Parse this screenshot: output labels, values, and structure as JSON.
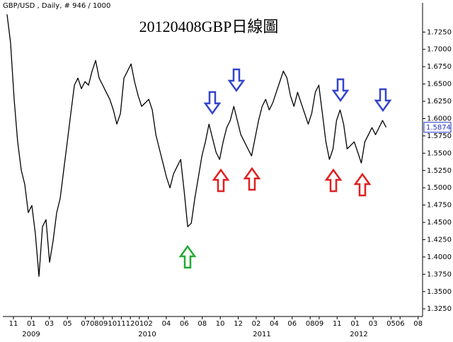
{
  "chart_data": {
    "type": "line",
    "header": "GBP/USD , Daily, # 946 / 1000",
    "title": "20120408GBP日線圖",
    "last_label": "1.5874",
    "last_value": 1.5874,
    "color": "#000000",
    "x": [
      -0.71,
      -0.32,
      0.08,
      0.47,
      0.87,
      1.26,
      1.65,
      2.05,
      2.44,
      2.84,
      3.23,
      3.62,
      4.02,
      4.41,
      4.81,
      5.2,
      5.59,
      5.99,
      6.38,
      6.78,
      7.17,
      7.56,
      7.96,
      8.35,
      8.75,
      9.14,
      9.53,
      9.93,
      10.32,
      10.72,
      11.11,
      11.5,
      11.9,
      12.29,
      12.69,
      13.08,
      13.47,
      13.87,
      14.26,
      14.66,
      15.05,
      15.44,
      15.84,
      16.23,
      16.63,
      17.02,
      17.41,
      17.81,
      18.2,
      18.6,
      18.99,
      19.38,
      19.78,
      20.17,
      20.57,
      20.96,
      21.35,
      21.75,
      22.14,
      22.54,
      22.93,
      23.32,
      23.72,
      24.11,
      24.51,
      24.9,
      25.29,
      25.69,
      26.08,
      26.48,
      26.87,
      27.26,
      27.66,
      28.05,
      28.45,
      28.84,
      29.23,
      29.63,
      30.02,
      30.42,
      30.81,
      31.2,
      31.6,
      31.99,
      32.39,
      32.78,
      33.17,
      33.57,
      33.96,
      34.36,
      34.75,
      35.14,
      35.54,
      35.93,
      36.33,
      36.72,
      37.11,
      37.51,
      37.9,
      38.3,
      38.69,
      39.08,
      39.48,
      39.87,
      40.27,
      40.66,
      41.05,
      41.45
    ],
    "series": [
      {
        "color": "#000000",
        "values": [
          1.7506,
          1.7097,
          1.6278,
          1.5664,
          1.5255,
          1.505,
          1.4641,
          1.4744,
          1.4334,
          1.372,
          1.4437,
          1.4539,
          1.3925,
          1.4232,
          1.4641,
          1.4846,
          1.5255,
          1.5664,
          1.6073,
          1.6483,
          1.6585,
          1.6432,
          1.6534,
          1.6483,
          1.6687,
          1.6841,
          1.6585,
          1.6483,
          1.638,
          1.6278,
          1.6125,
          1.592,
          1.6073,
          1.6585,
          1.6687,
          1.679,
          1.6534,
          1.6329,
          1.6176,
          1.6227,
          1.6278,
          1.6125,
          1.5767,
          1.5562,
          1.5357,
          1.5153,
          1.4999,
          1.5204,
          1.5306,
          1.5409,
          1.4948,
          1.4437,
          1.4488,
          1.4846,
          1.5153,
          1.546,
          1.5664,
          1.592,
          1.5716,
          1.5511,
          1.5409,
          1.5664,
          1.5869,
          1.5972,
          1.6176,
          1.5972,
          1.5767,
          1.5664,
          1.5562,
          1.546,
          1.5716,
          1.5972,
          1.6176,
          1.6278,
          1.6125,
          1.6227,
          1.638,
          1.6534,
          1.6687,
          1.6585,
          1.6329,
          1.6176,
          1.638,
          1.6227,
          1.6073,
          1.592,
          1.6073,
          1.638,
          1.6483,
          1.6073,
          1.5664,
          1.5409,
          1.5562,
          1.5972,
          1.6125,
          1.592,
          1.5562,
          1.5613,
          1.5664,
          1.5511,
          1.5357,
          1.5664,
          1.5767,
          1.5869,
          1.5767,
          1.5869,
          1.5972,
          1.5874
        ]
      }
    ],
    "xlim": [
      -1.1,
      45.5
    ],
    "ylim": [
      1.316,
      1.756
    ],
    "xticks": [
      {
        "value": 0,
        "label": "11"
      },
      {
        "value": 2,
        "label": "01"
      },
      {
        "value": 4,
        "label": "03"
      },
      {
        "value": 6,
        "label": "05"
      },
      {
        "value": 8,
        "label": "07"
      },
      {
        "value": 9,
        "label": "08"
      },
      {
        "value": 10,
        "label": "09"
      },
      {
        "value": 11,
        "label": "10"
      },
      {
        "value": 12,
        "label": "11"
      },
      {
        "value": 13,
        "label": "12"
      },
      {
        "value": 14,
        "label": "01"
      },
      {
        "value": 15,
        "label": "02"
      },
      {
        "value": 17,
        "label": "04"
      },
      {
        "value": 19,
        "label": "06"
      },
      {
        "value": 21,
        "label": "08"
      },
      {
        "value": 23,
        "label": "10"
      },
      {
        "value": 25,
        "label": "12"
      },
      {
        "value": 27,
        "label": "02"
      },
      {
        "value": 29,
        "label": "04"
      },
      {
        "value": 31,
        "label": "06"
      },
      {
        "value": 33,
        "label": "08"
      },
      {
        "value": 34,
        "label": "09"
      },
      {
        "value": 36,
        "label": "11"
      },
      {
        "value": 38,
        "label": "01"
      },
      {
        "value": 40,
        "label": "03"
      },
      {
        "value": 42,
        "label": "05"
      },
      {
        "value": 43,
        "label": "06"
      },
      {
        "value": 45,
        "label": "08"
      }
    ],
    "year_labels": [
      "2009",
      "2010",
      "2011",
      "2012"
    ],
    "yticks": [
      {
        "value": 1.325,
        "label": "1.3250"
      },
      {
        "value": 1.35,
        "label": "1.3500"
      },
      {
        "value": 1.375,
        "label": "1.3750"
      },
      {
        "value": 1.4,
        "label": "1.4000"
      },
      {
        "value": 1.425,
        "label": "1.4250"
      },
      {
        "value": 1.45,
        "label": "1.4500"
      },
      {
        "value": 1.475,
        "label": "1.4750"
      },
      {
        "value": 1.5,
        "label": "1.5000"
      },
      {
        "value": 1.525,
        "label": "1.5250"
      },
      {
        "value": 1.55,
        "label": "1.5500"
      },
      {
        "value": 1.575,
        "label": "1.5750"
      },
      {
        "value": 1.6,
        "label": "1.6000"
      },
      {
        "value": 1.625,
        "label": "1.6250"
      },
      {
        "value": 1.65,
        "label": "1.6500"
      },
      {
        "value": 1.675,
        "label": "1.6750"
      },
      {
        "value": 1.7,
        "label": "1.7000"
      },
      {
        "value": 1.725,
        "label": "1.7250"
      }
    ]
  }
}
